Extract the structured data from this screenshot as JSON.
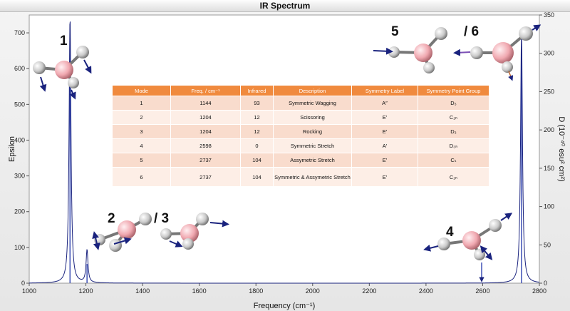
{
  "chart_data": {
    "type": "line",
    "title": "IR Spectrum",
    "xlabel": "Frequency (cm⁻¹)",
    "ylabel_left": "Epsilon",
    "ylabel_right": "D (10⁻⁴⁰ esu² cm²)",
    "xlim": [
      1000,
      2800
    ],
    "ylim_left": [
      0,
      750
    ],
    "ylim_right": [
      0,
      350
    ],
    "x_ticks": [
      1000,
      1200,
      1400,
      1600,
      1800,
      2000,
      2200,
      2400,
      2600,
      2800
    ],
    "y_ticks_left": [
      0,
      100,
      200,
      300,
      400,
      500,
      600,
      700
    ],
    "y_ticks_right": [
      0,
      50,
      100,
      150,
      200,
      250,
      300,
      350
    ],
    "spectrum_peaks": [
      {
        "x": 1144,
        "y": 745
      },
      {
        "x": 1204,
        "y": 92
      },
      {
        "x": 2598,
        "y": 0
      },
      {
        "x": 2737,
        "y": 708
      }
    ],
    "stick_series": [
      {
        "x": 1144,
        "y": 320
      },
      {
        "x": 1204,
        "y": 25
      },
      {
        "x": 2737,
        "y": 305
      }
    ],
    "annotations": [
      "1",
      "2",
      "/ 3",
      "4",
      "5",
      "/ 6"
    ]
  },
  "table": {
    "headers": [
      "Mode",
      "Freq. / cm⁻¹",
      "Infrared",
      "Description",
      "Symmetry Label",
      "Symmetry Point Group"
    ],
    "rows": [
      [
        "1",
        "1144",
        "93",
        "Symmetric Wagging",
        "A″",
        "D₃"
      ],
      [
        "2",
        "1204",
        "12",
        "Scissoring",
        "E′",
        "C₂ₕ"
      ],
      [
        "3",
        "1204",
        "12",
        "Rocking",
        "E′",
        "D₃"
      ],
      [
        "4",
        "2598",
        "0",
        "Symmetric Stretch",
        "A′",
        "D₃ₕ"
      ],
      [
        "5",
        "2737",
        "104",
        "Assymetric Stretch",
        "E′",
        "Cₛ"
      ],
      [
        "6",
        "2737",
        "104",
        "Symmetric & Assymetric Stretch",
        "E′",
        "C₂ₕ"
      ]
    ]
  },
  "colors": {
    "spectrum_line": "#1a237e",
    "stick_line": "#3f51b5",
    "table_header": "#f08a3e",
    "hydrogen_atom": "#d8d8d8",
    "boron_atom": "#f0a8b0",
    "arrow": "#1a237e"
  }
}
